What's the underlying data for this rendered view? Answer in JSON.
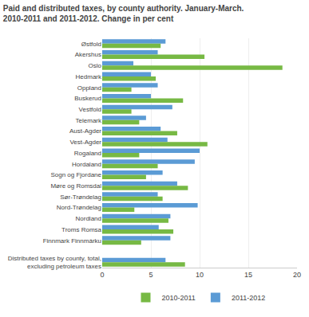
{
  "chart_data": {
    "type": "bar",
    "orientation": "horizontal",
    "title": "Paid and distributed taxes, by county authority. January-March.\n2010-2011 and 2011-2012. Change in per cent",
    "categories": [
      "Østfold",
      "Akershus",
      "Oslo",
      "Hedmark",
      "Oppland",
      "Buskerud",
      "Vestfold",
      "Telemark",
      "Aust-Agder",
      "Vest-Agder",
      "Rogaland",
      "Hordaland",
      "Sogn og Fjordane",
      "Møre og Romsdal",
      "Sør-Trøndelag",
      "Nord-Trøndelag",
      "Nordland",
      "Troms Romsa",
      "Finnmark Finnmárku",
      null,
      "Distributed taxes by county, total,\nexcluding petroleum taxes"
    ],
    "series": [
      {
        "name": "2010-2011",
        "color": "#77b944",
        "values": [
          6.0,
          10.5,
          18.5,
          5.5,
          3.0,
          8.3,
          3.0,
          3.8,
          7.7,
          10.8,
          3.8,
          5.7,
          4.5,
          8.8,
          6.2,
          3.3,
          6.8,
          7.3,
          4.0,
          null,
          8.5
        ]
      },
      {
        "name": "2011-2012",
        "color": "#5b9bd5",
        "values": [
          6.5,
          5.7,
          3.2,
          5.0,
          5.7,
          5.0,
          7.2,
          4.5,
          6.0,
          6.7,
          10.0,
          9.5,
          6.2,
          7.7,
          5.7,
          9.8,
          7.0,
          5.8,
          7.0,
          null,
          6.5
        ]
      }
    ],
    "xlim": [
      0,
      20
    ],
    "xticks": [
      0,
      5,
      10,
      15,
      20
    ],
    "grid": true,
    "legend": "bottom"
  }
}
